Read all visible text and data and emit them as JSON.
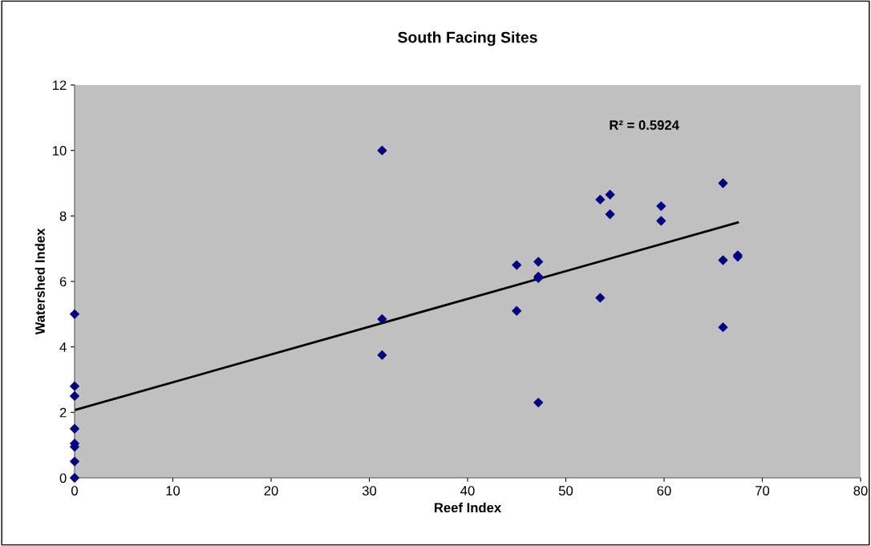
{
  "chart_data": {
    "type": "scatter",
    "title": "South Facing Sites",
    "xlabel": "Reef Index",
    "ylabel": "Watershed Index",
    "xlim": [
      0,
      80
    ],
    "xticks": [
      0,
      10,
      20,
      30,
      40,
      50,
      60,
      70,
      80
    ],
    "ylim": [
      0,
      12
    ],
    "yticks": [
      0,
      2,
      4,
      6,
      8,
      10,
      12
    ],
    "grid": false,
    "legend": false,
    "annotations": [
      "R² = 0.5924"
    ],
    "series": [
      {
        "marker": "diamond",
        "color": "#000080",
        "x": [
          0,
          0,
          0,
          0,
          0,
          0,
          0,
          0,
          31.3,
          31.3,
          31.3,
          45,
          45,
          47.2,
          47.2,
          47.2,
          47.2,
          53.5,
          53.5,
          54.5,
          54.5,
          59.7,
          59.7,
          66,
          66,
          66,
          67.5,
          67.5
        ],
        "values": [
          5.0,
          2.8,
          2.5,
          1.5,
          1.05,
          0.95,
          0.5,
          0.0,
          10.0,
          4.85,
          3.75,
          6.5,
          5.1,
          6.6,
          6.15,
          6.1,
          2.3,
          8.5,
          5.5,
          8.65,
          8.05,
          8.3,
          7.85,
          9.0,
          6.65,
          4.6,
          6.8,
          6.75
        ]
      },
      {
        "type": "line",
        "marker": "none",
        "color": "#000000",
        "x": [
          0,
          67.5
        ],
        "values": [
          2.07,
          7.8
        ]
      }
    ]
  }
}
